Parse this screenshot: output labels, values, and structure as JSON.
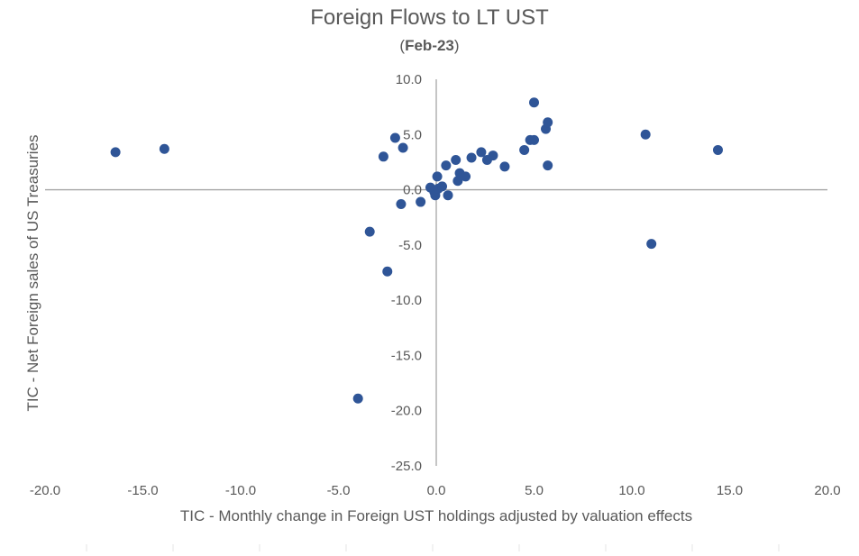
{
  "chart_data": {
    "type": "scatter",
    "title": "Foreign Flows to LT UST",
    "subtitle_prefix": "(",
    "subtitle_bold": "Feb-23",
    "subtitle_suffix": ")",
    "xlabel": "TIC - Monthly change in Foreign UST holdings adjusted by valuation effects",
    "ylabel": "TIC - Net Foreign sales of US Treasuries",
    "xlim": [
      -20,
      20
    ],
    "ylim": [
      -25,
      10
    ],
    "x_ticks": [
      "-20.0",
      "-15.0",
      "-10.0",
      "-5.0",
      "0.0",
      "5.0",
      "10.0",
      "15.0",
      "20.0"
    ],
    "y_ticks": [
      "10.0",
      "5.0",
      "0.0",
      "-5.0",
      "-10.0",
      "-15.0",
      "-20.0",
      "-25.0"
    ],
    "marker_color": "#2f5597",
    "axis_color": "#a6a6a6",
    "points": [
      {
        "x": -16.4,
        "y": 3.4
      },
      {
        "x": -13.9,
        "y": 3.7
      },
      {
        "x": -4.0,
        "y": -18.9
      },
      {
        "x": -3.4,
        "y": -3.8
      },
      {
        "x": -2.5,
        "y": -7.4
      },
      {
        "x": -2.7,
        "y": 3.0
      },
      {
        "x": -2.1,
        "y": 4.7
      },
      {
        "x": -1.7,
        "y": 3.8
      },
      {
        "x": -1.8,
        "y": -1.3
      },
      {
        "x": -0.8,
        "y": -1.1
      },
      {
        "x": -0.3,
        "y": 0.2
      },
      {
        "x": -0.1,
        "y": -0.2
      },
      {
        "x": -0.05,
        "y": -0.5
      },
      {
        "x": 0.05,
        "y": 1.2
      },
      {
        "x": 0.1,
        "y": 0.1
      },
      {
        "x": 0.3,
        "y": 0.3
      },
      {
        "x": 0.5,
        "y": 2.2
      },
      {
        "x": 0.6,
        "y": -0.5
      },
      {
        "x": 1.0,
        "y": 2.7
      },
      {
        "x": 1.1,
        "y": 0.8
      },
      {
        "x": 1.2,
        "y": 1.5
      },
      {
        "x": 1.5,
        "y": 1.2
      },
      {
        "x": 1.8,
        "y": 2.9
      },
      {
        "x": 2.3,
        "y": 3.4
      },
      {
        "x": 2.6,
        "y": 2.7
      },
      {
        "x": 2.9,
        "y": 3.1
      },
      {
        "x": 3.5,
        "y": 2.1
      },
      {
        "x": 4.5,
        "y": 3.6
      },
      {
        "x": 4.8,
        "y": 4.5
      },
      {
        "x": 5.0,
        "y": 4.5
      },
      {
        "x": 5.0,
        "y": 7.9
      },
      {
        "x": 5.6,
        "y": 5.5
      },
      {
        "x": 5.7,
        "y": 6.1
      },
      {
        "x": 5.7,
        "y": 2.2
      },
      {
        "x": 10.7,
        "y": 5.0
      },
      {
        "x": 11.0,
        "y": -4.9
      },
      {
        "x": 14.4,
        "y": 3.6
      }
    ]
  }
}
